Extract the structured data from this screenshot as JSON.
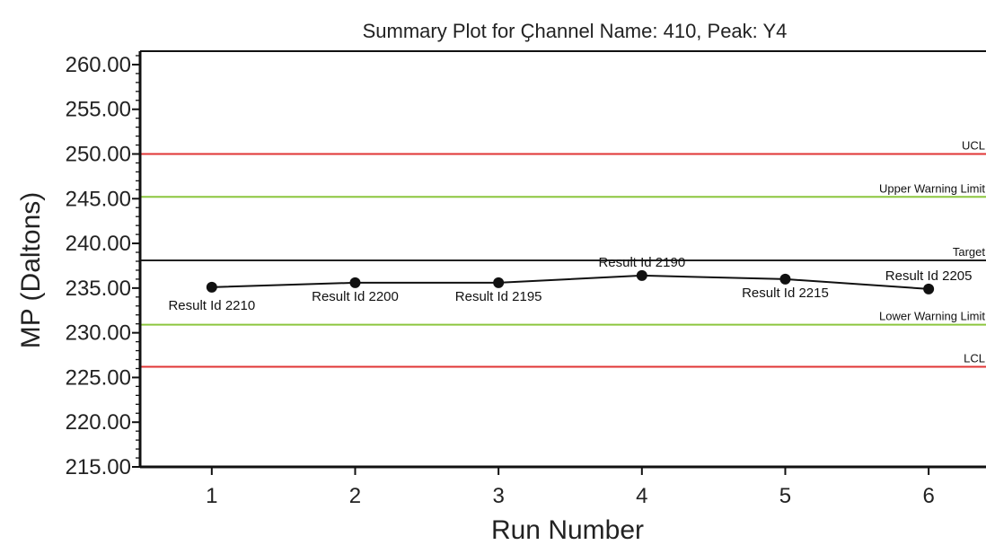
{
  "chart_data": {
    "type": "line",
    "title": "Summary Plot for Ҫhannel Name: 410, Peak: Y4",
    "xlabel": "Run Number",
    "ylabel": "MP (Daltons)",
    "xlim": [
      0.5,
      6.4
    ],
    "ylim": [
      215,
      261.5
    ],
    "yticks": [
      "215.00",
      "220.00",
      "225.00",
      "230.00",
      "235.00",
      "240.00",
      "245.00",
      "250.00",
      "255.00",
      "260.00"
    ],
    "xticks": [
      "1",
      "2",
      "3",
      "4",
      "5",
      "6"
    ],
    "grid": false,
    "series": [
      {
        "x": [
          1,
          2,
          3,
          4,
          5,
          6
        ],
        "values": [
          235.1,
          235.6,
          235.6,
          236.4,
          236.0,
          234.9
        ],
        "labels": [
          "Result Id 2210",
          "Result Id 2200",
          "Result Id 2195",
          "Result Id 2190",
          "Result Id 2215",
          "Result Id 2205"
        ],
        "color": "#111111"
      }
    ],
    "limits": [
      {
        "label": "UCL",
        "value": 250.0,
        "color": "#e03535"
      },
      {
        "label": "Upper Warning Limit",
        "value": 245.2,
        "color": "#8cc63f"
      },
      {
        "label": "Target",
        "value": 238.1,
        "color": "#222222"
      },
      {
        "label": "Lower Warning Limit",
        "value": 230.9,
        "color": "#8cc63f"
      },
      {
        "label": "LCL",
        "value": 226.2,
        "color": "#e03535"
      }
    ]
  }
}
